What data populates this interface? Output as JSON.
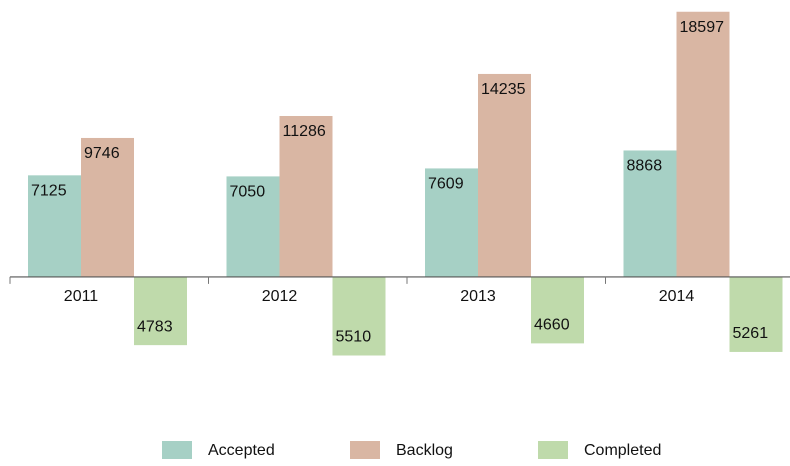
{
  "chart_data": {
    "type": "bar",
    "categories": [
      "2011",
      "2012",
      "2013",
      "2014"
    ],
    "series": [
      {
        "name": "Accepted",
        "color": "#a6d0c5",
        "values": [
          7125,
          7050,
          7609,
          8868
        ]
      },
      {
        "name": "Backlog",
        "color": "#d9b6a3",
        "values": [
          9746,
          11286,
          14235,
          18597
        ]
      },
      {
        "name": "Completed",
        "color": "#bfdaab",
        "values": [
          -4783,
          -5510,
          -4660,
          -5261
        ],
        "value_labels": [
          "4783",
          "5510",
          "4660",
          "5261"
        ]
      }
    ],
    "ylim": [
      -8000,
      19000
    ],
    "legend": "bottom"
  }
}
